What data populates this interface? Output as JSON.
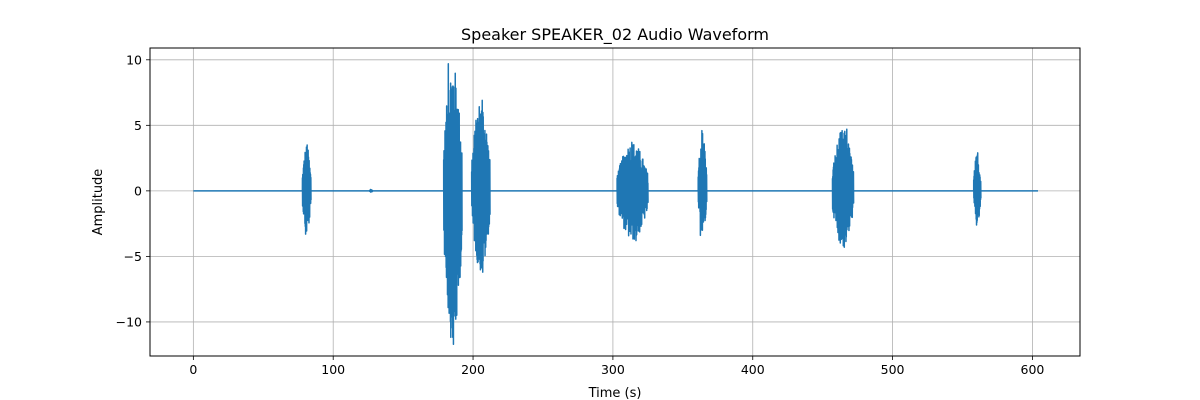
{
  "chart_data": {
    "type": "line",
    "title": "Speaker SPEAKER_02 Audio Waveform",
    "xlabel": "Time (s)",
    "ylabel": "Amplitude",
    "xlim": [
      -31,
      634
    ],
    "ylim": [
      -12.6,
      10.9
    ],
    "x_ticks": [
      0,
      100,
      200,
      300,
      400,
      500,
      600
    ],
    "y_ticks": [
      10,
      5,
      0,
      -5,
      -10
    ],
    "x_tick_labels": [
      "0",
      "100",
      "200",
      "300",
      "400",
      "500",
      "600"
    ],
    "y_tick_labels": [
      "10",
      "5",
      "0",
      "−5",
      "−10"
    ],
    "grid": true,
    "legend": "none",
    "duration": 604,
    "series": [
      {
        "color": "#1f77b4",
        "segments": [
          {
            "start": 78,
            "end": 84,
            "max": 3.5,
            "min": -3.3
          },
          {
            "start": 126,
            "end": 128,
            "max": 0.1,
            "min": -0.1
          },
          {
            "start": 179,
            "end": 192,
            "max": 9.7,
            "min": -11.7
          },
          {
            "start": 199,
            "end": 212,
            "max": 6.9,
            "min": -6.2
          },
          {
            "start": 303,
            "end": 325,
            "max": 3.7,
            "min": -3.8
          },
          {
            "start": 361,
            "end": 367,
            "max": 4.6,
            "min": -3.4
          },
          {
            "start": 457,
            "end": 472,
            "max": 4.7,
            "min": -4.3
          },
          {
            "start": 558,
            "end": 563,
            "max": 2.9,
            "min": -2.6
          }
        ]
      }
    ]
  }
}
